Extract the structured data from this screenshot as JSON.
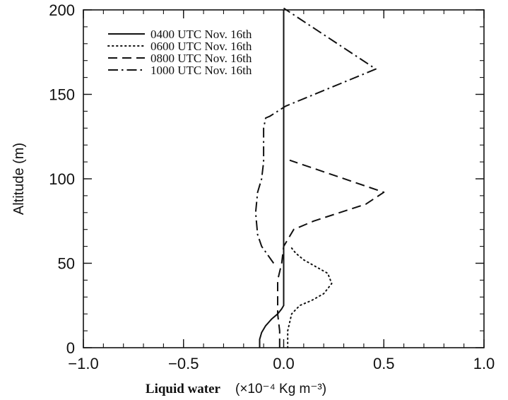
{
  "chart_data": {
    "type": "line",
    "title": "",
    "xlabel": "Liquid water",
    "xlabel_unit": "(×10⁻⁴ Kg m⁻³)",
    "ylabel": "Altitude (m)",
    "xlim": [
      -1.0,
      1.0
    ],
    "ylim": [
      0,
      200
    ],
    "xticks": [
      "−1.0",
      "−0.5",
      "0.0",
      "0.5",
      "1.0"
    ],
    "yticks": [
      "0",
      "50",
      "100",
      "150",
      "200"
    ],
    "grid": false,
    "legend_position": "top-left",
    "series": [
      {
        "name": "0400 UTC Nov. 16th",
        "dash": "solid",
        "x": [
          -0.12,
          -0.12,
          -0.11,
          -0.09,
          -0.06,
          -0.03,
          -0.01,
          0.0,
          0.0
        ],
        "y": [
          0,
          5,
          9,
          13,
          17,
          20,
          23,
          25,
          200
        ]
      },
      {
        "name": "0600 UTC Nov. 16th",
        "dash": "dotted",
        "x": [
          0.02,
          0.02,
          0.03,
          0.04,
          0.08,
          0.14,
          0.2,
          0.24,
          0.22,
          0.16,
          0.1,
          0.06,
          0.04,
          0.03
        ],
        "y": [
          0,
          10,
          15,
          20,
          25,
          28,
          32,
          38,
          44,
          48,
          52,
          56,
          59,
          60
        ]
      },
      {
        "name": "0800 UTC Nov. 16th",
        "dash": "dashed",
        "x": [
          -0.02,
          -0.02,
          -0.03,
          -0.03,
          -0.01,
          0.0,
          0.05,
          0.15,
          0.28,
          0.41,
          0.5,
          0.03
        ],
        "y": [
          0,
          10,
          20,
          40,
          50,
          60,
          70,
          75,
          80,
          85,
          92,
          111
        ]
      },
      {
        "name": "1000 UTC Nov. 16th",
        "dash": "dashdot",
        "x": [
          -0.05,
          -0.08,
          -0.11,
          -0.13,
          -0.14,
          -0.13,
          -0.11,
          -0.1,
          -0.1,
          -0.09,
          -0.07,
          0.01,
          0.46,
          0.0
        ],
        "y": [
          50,
          55,
          60,
          67,
          80,
          92,
          100,
          110,
          130,
          136,
          137,
          143,
          165,
          201
        ]
      }
    ]
  }
}
